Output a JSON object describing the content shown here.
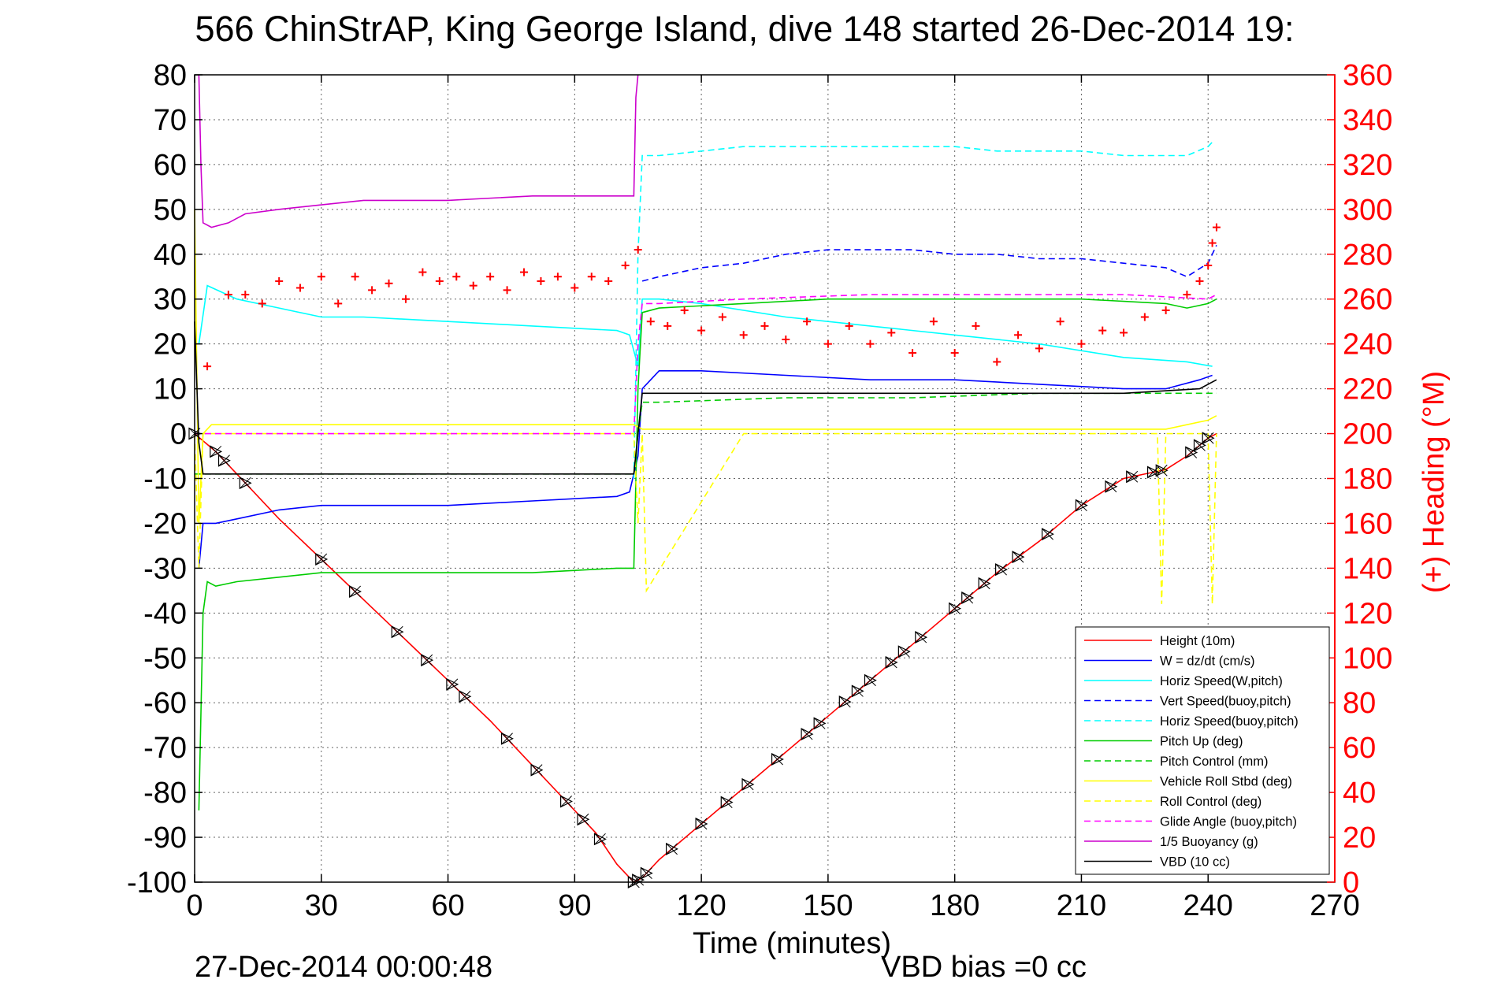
{
  "chart_data": {
    "type": "line",
    "title": "566 ChinStrAP, King George Island, dive 148 started 26-Dec-2014 19:",
    "xlabel": "Time (minutes)",
    "ylabel_right": "(+) Heading (°M)",
    "footer_date": "27-Dec-2014 00:00:48",
    "footer_bias": "VBD bias =0 cc",
    "xlim": [
      0,
      270
    ],
    "ylim_left": [
      -100,
      80
    ],
    "ylim_right": [
      0,
      360
    ],
    "xticks": [
      0,
      30,
      60,
      90,
      120,
      150,
      180,
      210,
      240,
      270
    ],
    "yticks_left": [
      80,
      70,
      60,
      50,
      40,
      30,
      20,
      10,
      0,
      -10,
      -20,
      -30,
      -40,
      -50,
      -60,
      -70,
      -80,
      -90,
      -100
    ],
    "yticks_right": [
      360,
      340,
      320,
      300,
      280,
      260,
      240,
      220,
      200,
      180,
      160,
      140,
      120,
      100,
      80,
      60,
      40,
      20,
      0
    ],
    "grid": true,
    "legend_position": "bottom-right",
    "axis_colors": {
      "left": "#000000",
      "right": "#ff0000"
    },
    "series": [
      {
        "name": "Height (10m)",
        "color": "#ff0000",
        "style": "solid",
        "x": [
          0,
          5,
          10,
          20,
          30,
          40,
          50,
          60,
          70,
          80,
          90,
          95,
          100,
          104,
          106,
          110,
          120,
          130,
          140,
          150,
          160,
          170,
          180,
          190,
          200,
          210,
          220,
          230,
          235,
          240,
          242
        ],
        "y": [
          0,
          -4,
          -9,
          -19,
          -28,
          -37,
          -46,
          -55,
          -64,
          -74,
          -84,
          -89,
          -96,
          -100,
          -99,
          -95,
          -87,
          -79,
          -71,
          -63,
          -55,
          -47,
          -39,
          -31,
          -24,
          -16,
          -10,
          -8,
          -5,
          -1,
          0
        ]
      },
      {
        "name": "W = dz/dt (cm/s)",
        "color": "#0000ff",
        "style": "solid",
        "x": [
          1,
          2,
          5,
          10,
          20,
          30,
          40,
          60,
          80,
          100,
          103,
          105,
          106,
          110,
          120,
          140,
          160,
          180,
          200,
          220,
          230,
          238,
          241
        ],
        "y": [
          -30,
          -20,
          -20,
          -19,
          -17,
          -16,
          -16,
          -16,
          -15,
          -14,
          -13,
          -5,
          10,
          14,
          14,
          13,
          12,
          12,
          11,
          10,
          10,
          12,
          13
        ]
      },
      {
        "name": "Horiz Speed(W,pitch)",
        "color": "#00ffff",
        "style": "solid",
        "x": [
          1,
          3,
          10,
          20,
          30,
          40,
          60,
          80,
          100,
          103,
          105,
          106,
          110,
          120,
          140,
          160,
          180,
          200,
          220,
          235,
          241
        ],
        "y": [
          20,
          33,
          30,
          28,
          26,
          26,
          25,
          24,
          23,
          22,
          15,
          30,
          30,
          29,
          26,
          24,
          22,
          20,
          17,
          16,
          15
        ]
      },
      {
        "name": "Vert Speed(buoy,pitch)",
        "color": "#0000ff",
        "style": "dashed",
        "x": [
          106,
          110,
          120,
          130,
          140,
          150,
          160,
          170,
          180,
          190,
          200,
          210,
          220,
          230,
          235,
          240,
          242
        ],
        "y": [
          34,
          35,
          37,
          38,
          40,
          41,
          41,
          41,
          40,
          40,
          39,
          39,
          38,
          37,
          35,
          38,
          42
        ]
      },
      {
        "name": "Horiz Speed(buoy,pitch)",
        "color": "#00ffff",
        "style": "dashed",
        "x": [
          104,
          105,
          106,
          110,
          120,
          130,
          140,
          150,
          160,
          170,
          180,
          190,
          200,
          210,
          220,
          230,
          235,
          240,
          241
        ],
        "y": [
          -10,
          40,
          62,
          62,
          63,
          64,
          64,
          64,
          64,
          64,
          64,
          63,
          63,
          63,
          62,
          62,
          62,
          64,
          65
        ]
      },
      {
        "name": "Pitch Up (deg)",
        "color": "#00cc00",
        "style": "solid",
        "x": [
          1,
          2,
          3,
          5,
          10,
          20,
          30,
          40,
          60,
          80,
          100,
          104,
          105,
          106,
          110,
          130,
          150,
          170,
          190,
          210,
          230,
          235,
          240,
          242
        ],
        "y": [
          -84,
          -40,
          -33,
          -34,
          -33,
          -32,
          -31,
          -31,
          -31,
          -31,
          -30,
          -30,
          10,
          27,
          28,
          29,
          30,
          30,
          30,
          30,
          29,
          28,
          29,
          30
        ]
      },
      {
        "name": "Pitch Control (mm)",
        "color": "#00cc00",
        "style": "dashed",
        "x": [
          0,
          1,
          104,
          105,
          106,
          110,
          140,
          170,
          200,
          230,
          242
        ],
        "y": [
          -9,
          -9,
          -9,
          0,
          7,
          7,
          8,
          8,
          9,
          9,
          9
        ]
      },
      {
        "name": "Vehicle Roll Stbd (deg)",
        "color": "#ffff00",
        "style": "solid",
        "x": [
          0,
          1,
          2,
          4,
          10,
          30,
          60,
          90,
          104,
          106,
          110,
          140,
          170,
          200,
          230,
          240,
          242
        ],
        "y": [
          50,
          -20,
          0,
          2,
          2,
          2,
          2,
          2,
          2,
          1,
          1,
          1,
          1,
          1,
          1,
          3,
          4
        ]
      },
      {
        "name": "Roll Control (deg)",
        "color": "#ffff00",
        "style": "dashed",
        "x": [
          0,
          1,
          2,
          104,
          105,
          106,
          107,
          130,
          160,
          190,
          220,
          228,
          229,
          230,
          240,
          241,
          242
        ],
        "y": [
          0,
          -30,
          0,
          0,
          -20,
          0,
          -35,
          0,
          0,
          0,
          0,
          0,
          -38,
          0,
          0,
          -38,
          0
        ]
      },
      {
        "name": "Glide Angle (buoy,pitch)",
        "color": "#ff00ff",
        "style": "dashed",
        "x": [
          0,
          104,
          105,
          106,
          110,
          130,
          160,
          190,
          220,
          240,
          242
        ],
        "y": [
          0,
          0,
          20,
          29,
          29,
          30,
          31,
          31,
          31,
          30,
          31
        ]
      },
      {
        "name": "1/5 Buoyancy (g)",
        "color": "#cc00cc",
        "style": "solid",
        "x": [
          1,
          1.5,
          2,
          4,
          8,
          12,
          20,
          30,
          40,
          60,
          80,
          104,
          104.5,
          105
        ],
        "y": [
          80,
          60,
          47,
          46,
          47,
          49,
          50,
          51,
          52,
          52,
          53,
          53,
          75,
          80
        ]
      },
      {
        "name": "VBD (10 cc)",
        "color": "#000000",
        "style": "solid",
        "x": [
          0,
          1,
          2,
          10,
          50,
          104,
          105,
          106,
          120,
          160,
          200,
          220,
          238,
          242
        ],
        "y": [
          25,
          -2,
          -9,
          -9,
          -9,
          -9,
          0,
          9,
          9,
          9,
          9,
          9,
          10,
          12
        ]
      }
    ],
    "heading_points": {
      "name": "(+) Heading",
      "axis": "right",
      "color": "#ff0000",
      "x": [
        3,
        8,
        12,
        16,
        20,
        25,
        30,
        34,
        38,
        42,
        46,
        50,
        54,
        58,
        62,
        66,
        70,
        74,
        78,
        82,
        86,
        90,
        94,
        98,
        102,
        105,
        108,
        112,
        116,
        120,
        125,
        130,
        135,
        140,
        145,
        150,
        155,
        160,
        165,
        170,
        175,
        180,
        185,
        190,
        195,
        200,
        205,
        210,
        215,
        220,
        225,
        230,
        235,
        238,
        240,
        241,
        242
      ],
      "y": [
        230,
        262,
        262,
        258,
        268,
        265,
        270,
        258,
        270,
        264,
        267,
        260,
        272,
        268,
        270,
        266,
        270,
        264,
        272,
        268,
        270,
        265,
        270,
        268,
        275,
        282,
        250,
        248,
        255,
        246,
        252,
        244,
        248,
        242,
        250,
        240,
        248,
        240,
        245,
        236,
        250,
        236,
        248,
        232,
        244,
        238,
        250,
        240,
        246,
        245,
        252,
        255,
        262,
        268,
        275,
        285,
        292
      ]
    },
    "height_markers": [
      0,
      5,
      7,
      12,
      30,
      38,
      48,
      55,
      61,
      64,
      74,
      81,
      88,
      92,
      96,
      104,
      105,
      107,
      113,
      120,
      126,
      131,
      138,
      145,
      148,
      154,
      157,
      160,
      165,
      168,
      172,
      180,
      183,
      187,
      191,
      195,
      202,
      210,
      217,
      222,
      227,
      229,
      236,
      238,
      240
    ]
  }
}
